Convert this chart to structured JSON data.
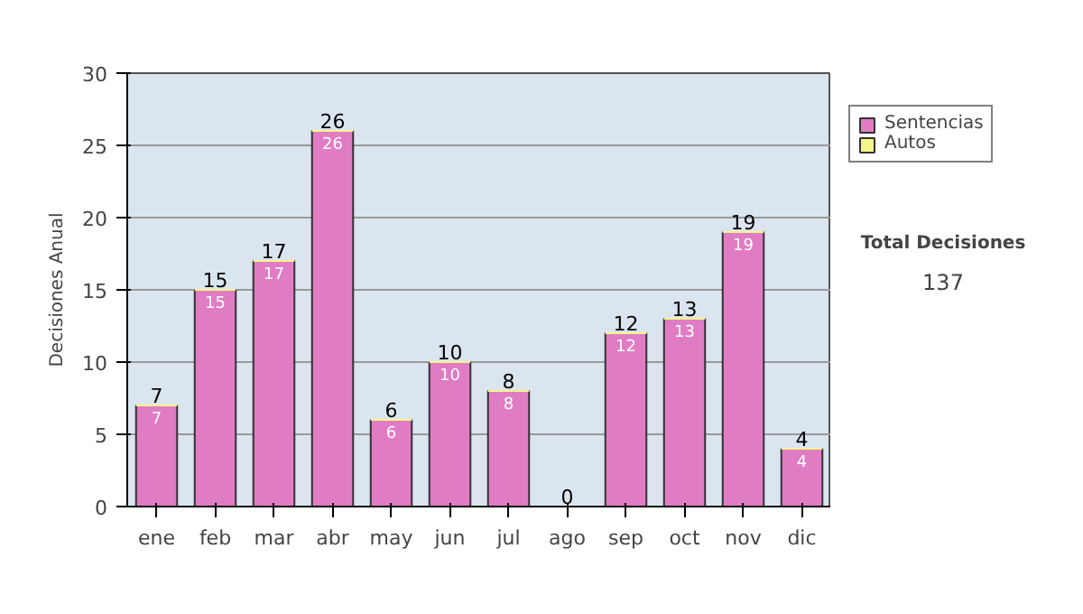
{
  "chart_data": {
    "type": "bar",
    "stacked": true,
    "ylabel": "Decisiones Anual",
    "categories": [
      "ene",
      "feb",
      "mar",
      "abr",
      "may",
      "jun",
      "jul",
      "ago",
      "sep",
      "oct",
      "nov",
      "dic"
    ],
    "series": [
      {
        "name": "Sentencias",
        "color": "#e07cc4",
        "values": [
          7,
          15,
          17,
          26,
          6,
          10,
          8,
          0,
          12,
          13,
          19,
          4
        ],
        "value_labels": [
          "7",
          "15",
          "17",
          "26",
          "6",
          "10",
          "8",
          null,
          "12",
          "13",
          "19",
          "4"
        ]
      },
      {
        "name": "Autos",
        "color": "#f4f48a",
        "values": [
          0,
          0,
          0,
          0,
          0,
          0,
          0,
          0,
          0,
          0,
          0,
          0
        ]
      }
    ],
    "totals": [
      "7",
      "15",
      "17",
      "26",
      "6",
      "10",
      "8",
      "0",
      "12",
      "13",
      "19",
      "4"
    ],
    "ylim": [
      0,
      30
    ],
    "yticks": [
      0,
      5,
      10,
      15,
      20,
      25,
      30
    ],
    "grid": "y",
    "legend": "right",
    "annotations": [
      "Total Decisiones",
      "137"
    ]
  }
}
